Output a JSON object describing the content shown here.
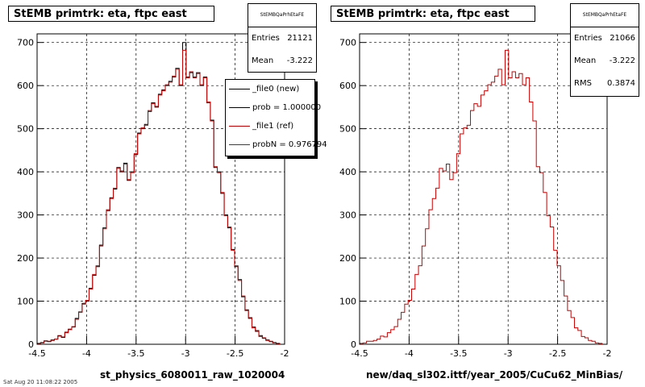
{
  "chart_data": [
    {
      "type": "histogram",
      "title": "StEMB primtrk: eta, ftpc east",
      "xlabel": "st_physics_6080011_raw_1020004",
      "xlim": [
        -4.5,
        -2.0
      ],
      "ylim": [
        0,
        720
      ],
      "xticks": [
        -4.5,
        -4,
        -3.5,
        -3,
        -2.5,
        -2
      ],
      "xtick_labels": [
        "-4.5",
        "-4",
        "-3.5",
        "-3",
        "-2.5",
        "-2"
      ],
      "yticks": [
        0,
        100,
        200,
        300,
        400,
        500,
        600,
        700
      ],
      "ytick_labels": [
        "0",
        "100",
        "200",
        "300",
        "400",
        "500",
        "600",
        "700"
      ],
      "grid": true,
      "bin_edges_range": [
        -4.5,
        -2.05
      ],
      "series": [
        {
          "name": "_file0 (new)",
          "color": "#000000",
          "values": [
            2,
            4,
            8,
            6,
            10,
            12,
            20,
            16,
            28,
            35,
            40,
            60,
            75,
            95,
            100,
            130,
            160,
            180,
            230,
            270,
            310,
            340,
            360,
            410,
            400,
            420,
            380,
            400,
            440,
            490,
            500,
            510,
            540,
            560,
            550,
            580,
            590,
            600,
            610,
            620,
            640,
            600,
            700,
            620,
            630,
            620,
            630,
            600,
            620,
            560,
            520,
            410,
            400,
            350,
            300,
            270,
            220,
            180,
            150,
            110,
            80,
            60,
            40,
            30,
            20,
            14,
            10,
            6,
            4,
            2
          ]
        },
        {
          "name": "_file1 (ref)",
          "color": "#cc0000",
          "values": [
            2,
            3,
            7,
            7,
            9,
            12,
            19,
            17,
            27,
            34,
            41,
            58,
            74,
            93,
            102,
            128,
            162,
            182,
            228,
            268,
            312,
            338,
            362,
            408,
            402,
            418,
            382,
            398,
            442,
            488,
            502,
            508,
            542,
            558,
            552,
            578,
            588,
            602,
            608,
            622,
            638,
            602,
            682,
            618,
            632,
            618,
            628,
            602,
            618,
            562,
            518,
            412,
            398,
            352,
            298,
            272,
            218,
            182,
            148,
            112,
            78,
            62,
            38,
            32,
            18,
            15,
            9,
            7,
            3,
            2
          ]
        }
      ]
    },
    {
      "type": "histogram",
      "title": "StEMB primtrk: eta, ftpc east",
      "xlabel": "new/daq_sl302.ittf/year_2005/CuCu62_MinBias/",
      "xlim": [
        -4.5,
        -2.0
      ],
      "ylim": [
        0,
        720
      ],
      "xticks": [
        -4.5,
        -4,
        -3.5,
        -3,
        -2.5,
        -2
      ],
      "xtick_labels": [
        "-4.5",
        "-4",
        "-3.5",
        "-3",
        "-2.5",
        "-2"
      ],
      "yticks": [
        0,
        100,
        200,
        300,
        400,
        500,
        600,
        700
      ],
      "ytick_labels": [
        "0",
        "100",
        "200",
        "300",
        "400",
        "500",
        "600",
        "700"
      ],
      "grid": true,
      "bin_edges_range": [
        -4.5,
        -2.05
      ],
      "series": [
        {
          "name": "",
          "color": "#cc0000",
          "values": [
            2,
            3,
            7,
            7,
            9,
            12,
            19,
            17,
            27,
            34,
            41,
            58,
            74,
            93,
            102,
            128,
            162,
            182,
            228,
            268,
            312,
            338,
            362,
            408,
            402,
            418,
            382,
            398,
            442,
            488,
            502,
            508,
            542,
            558,
            552,
            578,
            588,
            602,
            608,
            622,
            638,
            602,
            682,
            618,
            632,
            618,
            628,
            602,
            618,
            562,
            518,
            412,
            398,
            352,
            298,
            272,
            218,
            182,
            148,
            112,
            78,
            62,
            38,
            32,
            18,
            15,
            9,
            7,
            3,
            2
          ]
        }
      ]
    }
  ],
  "left": {
    "title": "StEMB primtrk: eta, ftpc east",
    "stats": {
      "header": "StEMBQaPrhEtaFE",
      "entries_label": "Entries",
      "entries_value": "21121",
      "mean_label": "Mean",
      "mean_value": "-3.222"
    },
    "legend": [
      {
        "label": "_file0 (new)",
        "color": "#000000"
      },
      {
        "label": "prob = 1.000000",
        "color": "#000000"
      },
      {
        "label": "_file1 (ref)",
        "color": "#cc0000"
      },
      {
        "label": "probN = 0.976794",
        "color": "#cc0000"
      }
    ],
    "xtitle": "st_physics_6080011_raw_1020004"
  },
  "right": {
    "title": "StEMB primtrk: eta, ftpc east",
    "stats": {
      "header": "StEMBQaPrhEtaFE",
      "entries_label": "Entries",
      "entries_value": "21066",
      "mean_label": "Mean",
      "mean_value": "-3.222",
      "rms_label": "RMS",
      "rms_value": "0.3874"
    },
    "xtitle": "new/daq_sl302.ittf/year_2005/CuCu62_MinBias/"
  },
  "footer": "Sat Aug 20 11:08:22 2005"
}
